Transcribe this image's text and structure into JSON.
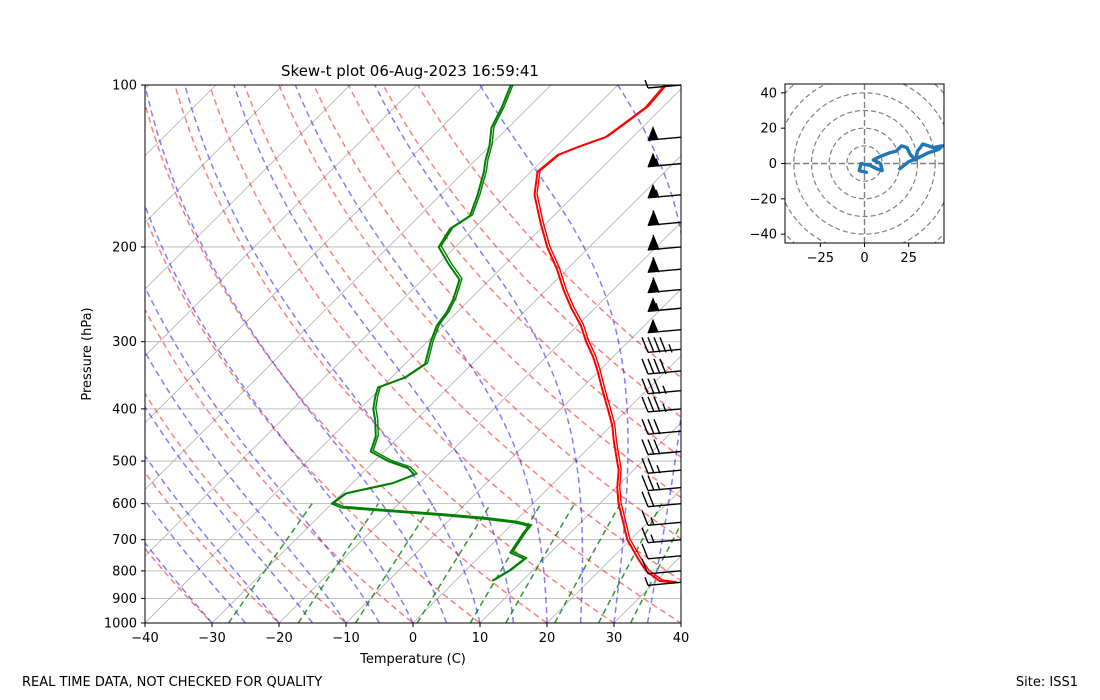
{
  "chart_data": [
    {
      "type": "skew-t",
      "title": "Skew-t plot 06-Aug-2023 16:59:41",
      "xlabel": "Temperature (C)",
      "ylabel": "Pressure (hPa)",
      "xlim": [
        -40,
        40
      ],
      "ylim": [
        1000,
        100
      ],
      "x_ticks": [
        -40,
        -30,
        -20,
        -10,
        0,
        10,
        20,
        30,
        40
      ],
      "x_tick_labels": [
        "−40",
        "−30",
        "−20",
        "−10",
        "0",
        "10",
        "20",
        "30",
        "40"
      ],
      "p_ticks": [
        100,
        200,
        300,
        400,
        500,
        600,
        700,
        800,
        900,
        1000
      ],
      "p_tick_labels": [
        "100",
        "200",
        "300",
        "400",
        "500",
        "600",
        "700",
        "800",
        "900",
        "1000"
      ],
      "skew_degrees_per_decade_lnp": 35,
      "isotherms": [
        -120,
        -110,
        -100,
        -90,
        -80,
        -70,
        -60,
        -50,
        -40,
        -30,
        -20,
        -10,
        0,
        10,
        20,
        30,
        40
      ],
      "dry_adiabats_theta_c": [
        -30,
        -20,
        -10,
        0,
        10,
        20,
        30,
        40,
        50,
        60,
        70,
        80,
        90,
        100
      ],
      "moist_adiabats_start_t_c": [
        -30,
        -25,
        -20,
        -15,
        -10,
        -5,
        0,
        5,
        10,
        15,
        20,
        25,
        30,
        35
      ],
      "mixing_ratio_lines_g_kg": [
        0.4,
        1,
        2,
        4,
        7,
        10,
        16,
        24,
        32
      ],
      "temperature_profile": {
        "name": "Temperature",
        "color": "#ff0000",
        "points": [
          {
            "p": 842,
            "t": 33.0
          },
          {
            "p": 835,
            "t": 30.5
          },
          {
            "p": 800,
            "t": 27.0
          },
          {
            "p": 760,
            "t": 24.0
          },
          {
            "p": 700,
            "t": 19.5
          },
          {
            "p": 650,
            "t": 16.3
          },
          {
            "p": 600,
            "t": 12.8
          },
          {
            "p": 560,
            "t": 10.2
          },
          {
            "p": 520,
            "t": 7.8
          },
          {
            "p": 500,
            "t": 6.2
          },
          {
            "p": 460,
            "t": 2.8
          },
          {
            "p": 430,
            "t": 0.2
          },
          {
            "p": 400,
            "t": -3.0
          },
          {
            "p": 370,
            "t": -6.5
          },
          {
            "p": 340,
            "t": -10.2
          },
          {
            "p": 320,
            "t": -13.0
          },
          {
            "p": 300,
            "t": -16.3
          },
          {
            "p": 280,
            "t": -19.5
          },
          {
            "p": 260,
            "t": -23.5
          },
          {
            "p": 240,
            "t": -27.5
          },
          {
            "p": 220,
            "t": -31.5
          },
          {
            "p": 200,
            "t": -36.3
          },
          {
            "p": 180,
            "t": -41.0
          },
          {
            "p": 160,
            "t": -46.0
          },
          {
            "p": 145,
            "t": -49.0
          },
          {
            "p": 135,
            "t": -48.5
          },
          {
            "p": 130,
            "t": -46.5
          },
          {
            "p": 125,
            "t": -44.0
          },
          {
            "p": 115,
            "t": -43.0
          },
          {
            "p": 110,
            "t": -42.5
          },
          {
            "p": 100,
            "t": -43.0
          }
        ]
      },
      "dewpoint_profile": {
        "name": "Dewpoint",
        "color": "#008000",
        "points": [
          {
            "p": 835,
            "t": 5.5
          },
          {
            "p": 800,
            "t": 6.5
          },
          {
            "p": 760,
            "t": 7.0
          },
          {
            "p": 740,
            "t": 4.0
          },
          {
            "p": 710,
            "t": 3.5
          },
          {
            "p": 680,
            "t": 3.0
          },
          {
            "p": 660,
            "t": 2.8
          },
          {
            "p": 650,
            "t": 0.0
          },
          {
            "p": 640,
            "t": -5.0
          },
          {
            "p": 630,
            "t": -12.0
          },
          {
            "p": 620,
            "t": -20.0
          },
          {
            "p": 610,
            "t": -28.0
          },
          {
            "p": 600,
            "t": -30.0
          },
          {
            "p": 575,
            "t": -29.5
          },
          {
            "p": 550,
            "t": -24.0
          },
          {
            "p": 530,
            "t": -22.0
          },
          {
            "p": 515,
            "t": -24.0
          },
          {
            "p": 500,
            "t": -28.0
          },
          {
            "p": 480,
            "t": -32.0
          },
          {
            "p": 450,
            "t": -33.5
          },
          {
            "p": 420,
            "t": -36.0
          },
          {
            "p": 400,
            "t": -38.0
          },
          {
            "p": 380,
            "t": -39.5
          },
          {
            "p": 365,
            "t": -40.5
          },
          {
            "p": 350,
            "t": -38.0
          },
          {
            "p": 330,
            "t": -37.0
          },
          {
            "p": 300,
            "t": -39.5
          },
          {
            "p": 280,
            "t": -41.0
          },
          {
            "p": 265,
            "t": -41.5
          },
          {
            "p": 250,
            "t": -42.5
          },
          {
            "p": 230,
            "t": -44.5
          },
          {
            "p": 215,
            "t": -48.5
          },
          {
            "p": 200,
            "t": -52.5
          },
          {
            "p": 185,
            "t": -53.5
          },
          {
            "p": 175,
            "t": -52.5
          },
          {
            "p": 160,
            "t": -54.5
          },
          {
            "p": 145,
            "t": -57.0
          },
          {
            "p": 138,
            "t": -58.5
          },
          {
            "p": 130,
            "t": -60.0
          },
          {
            "p": 120,
            "t": -62.5
          },
          {
            "p": 110,
            "t": -64.0
          },
          {
            "p": 100,
            "t": -66.0
          }
        ]
      },
      "wind_barbs": [
        {
          "p": 840,
          "speed_kt": 5
        },
        {
          "p": 800,
          "speed_kt": 10
        },
        {
          "p": 750,
          "speed_kt": 10
        },
        {
          "p": 700,
          "speed_kt": 15
        },
        {
          "p": 650,
          "speed_kt": 15
        },
        {
          "p": 600,
          "speed_kt": 20
        },
        {
          "p": 560,
          "speed_kt": 25
        },
        {
          "p": 520,
          "speed_kt": 25
        },
        {
          "p": 480,
          "speed_kt": 30
        },
        {
          "p": 440,
          "speed_kt": 30
        },
        {
          "p": 400,
          "speed_kt": 35
        },
        {
          "p": 370,
          "speed_kt": 35
        },
        {
          "p": 340,
          "speed_kt": 40
        },
        {
          "p": 310,
          "speed_kt": 45
        },
        {
          "p": 285,
          "speed_kt": 50
        },
        {
          "p": 260,
          "speed_kt": 55
        },
        {
          "p": 240,
          "speed_kt": 60
        },
        {
          "p": 220,
          "speed_kt": 60
        },
        {
          "p": 200,
          "speed_kt": 60
        },
        {
          "p": 180,
          "speed_kt": 60
        },
        {
          "p": 160,
          "speed_kt": 55
        },
        {
          "p": 140,
          "speed_kt": 55
        },
        {
          "p": 125,
          "speed_kt": 50
        },
        {
          "p": 100,
          "speed_kt": 5
        }
      ]
    },
    {
      "type": "hodograph",
      "xlim": [
        -45,
        45
      ],
      "ylim": [
        -45,
        45
      ],
      "x_ticks": [
        -25,
        0,
        25
      ],
      "x_tick_labels": [
        "−25",
        "0",
        "25"
      ],
      "y_ticks": [
        40,
        20,
        0,
        -20,
        -40
      ],
      "y_tick_labels": [
        "40",
        "20",
        "0",
        "−20",
        "−40"
      ],
      "rings": [
        10,
        20,
        30,
        40,
        50,
        60
      ],
      "line_color": "#1f77b4",
      "points": [
        {
          "u": 1,
          "v": -5
        },
        {
          "u": -3,
          "v": -4
        },
        {
          "u": -2,
          "v": 0
        },
        {
          "u": 3,
          "v": -1
        },
        {
          "u": 7,
          "v": -3
        },
        {
          "u": 10,
          "v": -4
        },
        {
          "u": 9,
          "v": 0
        },
        {
          "u": 5,
          "v": 2
        },
        {
          "u": 9,
          "v": 4
        },
        {
          "u": 14,
          "v": 6
        },
        {
          "u": 18,
          "v": 7
        },
        {
          "u": 21,
          "v": 10
        },
        {
          "u": 24,
          "v": 9
        },
        {
          "u": 26,
          "v": 5
        },
        {
          "u": 29,
          "v": 2
        },
        {
          "u": 30,
          "v": 7
        },
        {
          "u": 33,
          "v": 11
        },
        {
          "u": 36,
          "v": 10
        },
        {
          "u": 39,
          "v": 9
        },
        {
          "u": 44,
          "v": 10
        },
        {
          "u": 42,
          "v": 8
        },
        {
          "u": 36,
          "v": 6
        },
        {
          "u": 30,
          "v": 3
        },
        {
          "u": 25,
          "v": 1
        },
        {
          "u": 20,
          "v": -3
        }
      ]
    }
  ],
  "footer": {
    "disclaimer": "REAL TIME DATA, NOT CHECKED FOR QUALITY",
    "site": "Site: ISS1"
  }
}
